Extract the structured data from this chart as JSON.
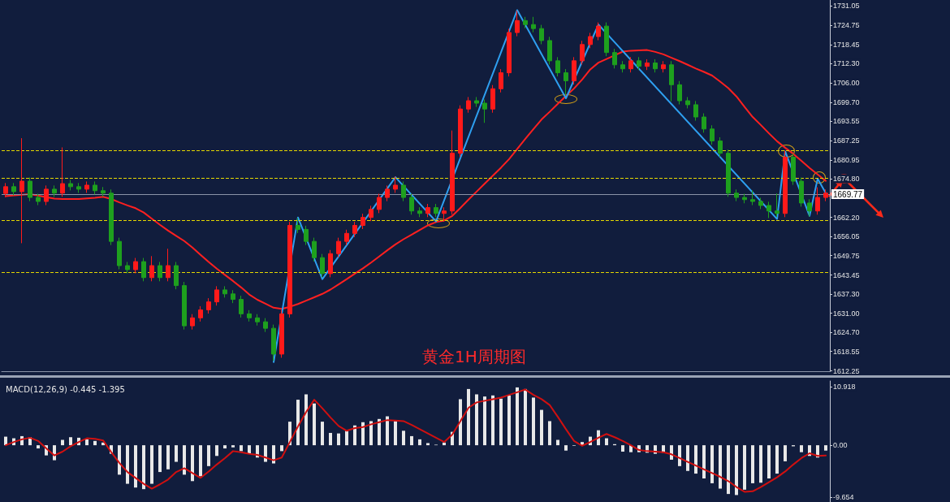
{
  "chart_data": [
    {
      "type": "candlestick",
      "title": "黄金1H周期图",
      "categories": [
        null,
        null,
        null,
        null,
        null,
        null,
        null,
        null,
        null,
        null,
        null,
        null,
        null,
        null,
        null,
        null,
        null,
        null,
        null,
        null,
        null,
        null,
        null,
        null,
        null,
        null,
        null,
        null,
        null,
        null,
        null,
        null,
        null,
        null,
        null,
        null,
        null,
        null,
        null,
        null,
        null,
        null,
        null,
        null,
        null,
        null,
        null,
        null,
        null,
        null,
        null,
        null,
        null,
        null,
        null,
        null,
        null,
        null,
        null,
        null,
        null,
        null,
        null,
        null,
        null,
        null,
        null,
        null,
        null,
        null,
        null,
        null,
        null,
        null,
        null,
        null,
        null,
        null,
        null,
        null,
        null,
        null,
        null,
        null,
        null,
        null,
        null,
        null,
        null,
        null,
        null,
        null,
        null,
        null,
        null,
        null,
        null,
        null,
        null,
        null,
        null,
        null
      ],
      "ohlc": [
        [
          1670.0,
          1673.4,
          1668.8,
          1672.2
        ],
        [
          1672.2,
          1673.4,
          1669.4,
          1670.6
        ],
        [
          1670.6,
          1688.0,
          1653.8,
          1674.0
        ],
        [
          1674.0,
          1675.2,
          1667.5,
          1668.7
        ],
        [
          1668.7,
          1669.9,
          1666.2,
          1667.4
        ],
        [
          1667.4,
          1672.6,
          1666.2,
          1671.4
        ],
        [
          1671.4,
          1672.6,
          1668.9,
          1670.1
        ],
        [
          1670.1,
          1685.0,
          1668.9,
          1673.2
        ],
        [
          1673.2,
          1674.4,
          1671.0,
          1672.2
        ],
        [
          1672.2,
          1673.4,
          1670.2,
          1671.4
        ],
        [
          1671.4,
          1673.9,
          1670.2,
          1672.7
        ],
        [
          1672.7,
          1673.9,
          1669.7,
          1670.9
        ],
        [
          1670.9,
          1672.1,
          1668.9,
          1670.1
        ],
        [
          1670.1,
          1671.3,
          1653.2,
          1654.4
        ],
        [
          1654.4,
          1655.6,
          1645.3,
          1646.5
        ],
        [
          1646.5,
          1647.7,
          1644.0,
          1645.2
        ],
        [
          1645.2,
          1649.0,
          1644.0,
          1647.8
        ],
        [
          1647.8,
          1649.0,
          1641.4,
          1642.6
        ],
        [
          1642.6,
          1649.6,
          1641.4,
          1646.5
        ],
        [
          1646.5,
          1647.7,
          1641.4,
          1642.6
        ],
        [
          1642.6,
          1652.0,
          1641.4,
          1646.5
        ],
        [
          1646.5,
          1647.7,
          1638.8,
          1640.0
        ],
        [
          1640.0,
          1641.2,
          1625.7,
          1626.9
        ],
        [
          1626.9,
          1630.7,
          1625.7,
          1629.5
        ],
        [
          1629.5,
          1633.3,
          1628.3,
          1632.1
        ],
        [
          1632.1,
          1635.9,
          1630.9,
          1634.7
        ],
        [
          1634.7,
          1639.8,
          1633.5,
          1638.6
        ],
        [
          1638.6,
          1639.8,
          1636.1,
          1637.3
        ],
        [
          1637.3,
          1638.5,
          1634.3,
          1635.5
        ],
        [
          1635.5,
          1636.7,
          1629.6,
          1630.8
        ],
        [
          1630.8,
          1632.0,
          1628.3,
          1629.5
        ],
        [
          1629.5,
          1630.7,
          1627.0,
          1628.2
        ],
        [
          1628.2,
          1629.4,
          1624.9,
          1626.1
        ],
        [
          1626.1,
          1627.3,
          1615.5,
          1617.7
        ],
        [
          1617.7,
          1632.0,
          1616.5,
          1630.8
        ],
        [
          1630.8,
          1660.8,
          1629.6,
          1659.6
        ],
        [
          1659.6,
          1662.0,
          1657.1,
          1658.3
        ],
        [
          1658.3,
          1659.5,
          1653.2,
          1654.4
        ],
        [
          1654.4,
          1655.6,
          1647.9,
          1649.1
        ],
        [
          1649.1,
          1650.3,
          1642.7,
          1643.9
        ],
        [
          1643.9,
          1651.6,
          1642.7,
          1650.4
        ],
        [
          1650.4,
          1655.6,
          1649.2,
          1654.4
        ],
        [
          1654.4,
          1658.2,
          1653.2,
          1657.0
        ],
        [
          1657.0,
          1660.8,
          1655.8,
          1659.6
        ],
        [
          1659.6,
          1663.4,
          1658.4,
          1662.2
        ],
        [
          1662.2,
          1666.0,
          1661.0,
          1664.8
        ],
        [
          1664.8,
          1669.9,
          1663.6,
          1668.7
        ],
        [
          1668.7,
          1672.6,
          1667.5,
          1671.4
        ],
        [
          1671.4,
          1675.5,
          1670.2,
          1672.7
        ],
        [
          1672.7,
          1673.9,
          1667.5,
          1668.7
        ],
        [
          1668.7,
          1669.9,
          1663.1,
          1664.3
        ],
        [
          1664.3,
          1665.5,
          1662.3,
          1663.5
        ],
        [
          1663.5,
          1666.6,
          1662.3,
          1665.4
        ],
        [
          1665.4,
          1666.6,
          1662.3,
          1663.5
        ],
        [
          1663.5,
          1665.5,
          1660.8,
          1664.3
        ],
        [
          1664.3,
          1690.5,
          1663.1,
          1683.1
        ],
        [
          1683.1,
          1698.7,
          1681.9,
          1697.5
        ],
        [
          1697.5,
          1701.4,
          1696.3,
          1700.2
        ],
        [
          1700.2,
          1701.4,
          1698.2,
          1699.4
        ],
        [
          1699.4,
          1700.6,
          1693.0,
          1697.5
        ],
        [
          1697.5,
          1705.3,
          1696.3,
          1704.1
        ],
        [
          1704.1,
          1710.5,
          1702.9,
          1709.3
        ],
        [
          1709.3,
          1723.6,
          1708.1,
          1722.4
        ],
        [
          1722.4,
          1729.5,
          1721.2,
          1726.3
        ],
        [
          1726.3,
          1727.5,
          1723.8,
          1725.0
        ],
        [
          1725.0,
          1727.5,
          1722.5,
          1723.7
        ],
        [
          1723.7,
          1724.9,
          1718.6,
          1719.8
        ],
        [
          1719.8,
          1721.0,
          1712.0,
          1713.2
        ],
        [
          1713.2,
          1714.4,
          1708.1,
          1709.3
        ],
        [
          1709.3,
          1710.5,
          1702.0,
          1706.7
        ],
        [
          1706.7,
          1714.4,
          1705.5,
          1713.2
        ],
        [
          1713.2,
          1719.7,
          1712.0,
          1718.5
        ],
        [
          1718.5,
          1722.3,
          1717.3,
          1721.1
        ],
        [
          1721.1,
          1725.7,
          1719.9,
          1724.5
        ],
        [
          1724.5,
          1725.7,
          1714.7,
          1715.9
        ],
        [
          1715.9,
          1717.1,
          1710.7,
          1711.9
        ],
        [
          1711.9,
          1713.1,
          1709.4,
          1710.6
        ],
        [
          1710.6,
          1714.4,
          1709.4,
          1713.2
        ],
        [
          1713.2,
          1714.4,
          1710.2,
          1711.4
        ],
        [
          1711.4,
          1713.7,
          1710.2,
          1712.5
        ],
        [
          1712.5,
          1713.7,
          1709.4,
          1710.6
        ],
        [
          1710.6,
          1713.1,
          1709.4,
          1711.9
        ],
        [
          1711.9,
          1713.1,
          1700.0,
          1705.4
        ],
        [
          1705.4,
          1706.6,
          1699.0,
          1700.2
        ],
        [
          1700.2,
          1701.4,
          1697.7,
          1698.9
        ],
        [
          1698.9,
          1700.1,
          1693.7,
          1694.9
        ],
        [
          1694.9,
          1696.1,
          1689.8,
          1691.0
        ],
        [
          1691.0,
          1692.2,
          1685.9,
          1687.1
        ],
        [
          1687.1,
          1688.3,
          1681.9,
          1683.1
        ],
        [
          1683.1,
          1684.3,
          1668.9,
          1670.1
        ],
        [
          1670.1,
          1671.3,
          1667.5,
          1668.7
        ],
        [
          1668.7,
          1669.9,
          1666.8,
          1668.0
        ],
        [
          1668.0,
          1671.0,
          1666.2,
          1667.4
        ],
        [
          1667.4,
          1668.6,
          1664.9,
          1666.1
        ],
        [
          1666.1,
          1667.3,
          1662.0,
          1664.3
        ],
        [
          1664.3,
          1670.0,
          1662.3,
          1663.5
        ],
        [
          1663.5,
          1684.0,
          1662.3,
          1681.8
        ],
        [
          1681.8,
          1683.0,
          1672.8,
          1674.0
        ],
        [
          1674.0,
          1675.2,
          1665.7,
          1666.9
        ],
        [
          1666.9,
          1668.1,
          1662.5,
          1664.3
        ],
        [
          1664.3,
          1672.0,
          1663.1,
          1668.7
        ],
        [
          1668.7,
          1671.3,
          1667.5,
          1670.1
        ]
      ],
      "series": [
        {
          "type": "line",
          "color": "#ff2020",
          "values": [
            1669.1,
            1669.4,
            1669.6,
            1669.8,
            1669.3,
            1668.8,
            1668.3,
            1668.2,
            1668.2,
            1668.2,
            1668.4,
            1668.6,
            1668.9,
            1668.2,
            1667.1,
            1666.1,
            1665.2,
            1663.8,
            1661.8,
            1659.8,
            1657.9,
            1656.2,
            1654.5,
            1652.4,
            1650.0,
            1647.7,
            1645.5,
            1643.5,
            1641.5,
            1639.4,
            1637.1,
            1635.4,
            1634.1,
            1632.8,
            1632.4,
            1633.1,
            1634.0,
            1635.1,
            1636.2,
            1637.3,
            1638.7,
            1640.4,
            1642.1,
            1643.9,
            1645.6,
            1647.5,
            1649.5,
            1651.5,
            1653.4,
            1655.1,
            1656.6,
            1658.1,
            1659.6,
            1660.7,
            1661.2,
            1662.7,
            1665.3,
            1668.0,
            1670.6,
            1673.2,
            1675.8,
            1678.4,
            1681.2,
            1684.5,
            1687.8,
            1691.0,
            1694.1,
            1696.6,
            1699.2,
            1701.7,
            1704.2,
            1707.1,
            1710.4,
            1712.6,
            1713.8,
            1715.0,
            1716.2,
            1716.5,
            1716.6,
            1716.7,
            1716.1,
            1715.3,
            1714.2,
            1713.1,
            1711.9,
            1710.7,
            1709.6,
            1708.4,
            1706.4,
            1704.3,
            1701.6,
            1698.2,
            1694.9,
            1692.3,
            1689.6,
            1687.0,
            1684.9,
            1682.9,
            1680.6,
            1678.3,
            1676.2,
            1674.1
          ]
        },
        {
          "type": "line",
          "color": "#2e9ff0",
          "values": [
            null,
            null,
            null,
            null,
            null,
            null,
            null,
            null,
            null,
            null,
            null,
            null,
            null,
            null,
            null,
            null,
            null,
            null,
            null,
            null,
            null,
            null,
            null,
            null,
            null,
            null,
            null,
            null,
            null,
            null,
            null,
            null,
            null,
            1615.1,
            null,
            null,
            1662.2,
            null,
            null,
            1642.1,
            null,
            null,
            null,
            null,
            null,
            null,
            null,
            null,
            1675.3,
            null,
            null,
            null,
            null,
            1660.9,
            null,
            null,
            null,
            null,
            null,
            null,
            null,
            null,
            null,
            1729.7,
            null,
            null,
            null,
            null,
            null,
            1701.0,
            null,
            null,
            null,
            1725.0,
            null,
            null,
            null,
            null,
            null,
            null,
            null,
            null,
            null,
            null,
            null,
            null,
            null,
            null,
            null,
            null,
            null,
            null,
            null,
            null,
            null,
            1661.7,
            1683.7,
            null,
            null,
            1662.7,
            1674.8,
            1670.1
          ]
        }
      ],
      "ylim": [
        1612,
        1733
      ],
      "yticks": [
        {
          "value": 1731.05,
          "label": "1731.05"
        },
        {
          "value": 1724.75,
          "label": "1724.75"
        },
        {
          "value": 1718.45,
          "label": "1718.45"
        },
        {
          "value": 1712.3,
          "label": "1712.30"
        },
        {
          "value": 1706.0,
          "label": "1706.00"
        },
        {
          "value": 1699.7,
          "label": "1699.70"
        },
        {
          "value": 1693.55,
          "label": "1693.55"
        },
        {
          "value": 1687.25,
          "label": "1687.25"
        },
        {
          "value": 1680.95,
          "label": "1680.95"
        },
        {
          "value": 1674.8,
          "label": "1674.80"
        },
        {
          "value": 1662.2,
          "label": "1662.20"
        },
        {
          "value": 1656.05,
          "label": "1656.05"
        },
        {
          "value": 1649.75,
          "label": "1649.75"
        },
        {
          "value": 1643.45,
          "label": "1643.45"
        },
        {
          "value": 1637.3,
          "label": "1637.30"
        },
        {
          "value": 1631.0,
          "label": "1631.00"
        },
        {
          "value": 1624.7,
          "label": "1624.70"
        },
        {
          "value": 1618.55,
          "label": "1618.55"
        },
        {
          "value": 1612.25,
          "label": "1612.25"
        }
      ],
      "ref_lines": [
        {
          "axis": "y",
          "value": 1669.77,
          "label": "1669.77",
          "color": "#8a93a8",
          "line_style": "solid"
        },
        {
          "axis": "y",
          "value": 1684.0,
          "color": "#e6d800",
          "line_style": "dashed"
        },
        {
          "axis": "y",
          "value": 1675.0,
          "color": "#e6d800",
          "line_style": "dashed"
        },
        {
          "axis": "y",
          "value": 1661.2,
          "color": "#e6d800",
          "line_style": "dashed"
        },
        {
          "axis": "y",
          "value": 1644.4,
          "color": "#e6d800",
          "line_style": "dashed"
        }
      ],
      "marker": "none",
      "grid": false,
      "tick_labels": "y"
    },
    {
      "type": "bar",
      "title": "MACD(12,26,9) -0.445 -1.395",
      "categories": [
        null,
        null,
        null,
        null,
        null,
        null,
        null,
        null,
        null,
        null,
        null,
        null,
        null,
        null,
        null,
        null,
        null,
        null,
        null,
        null,
        null,
        null,
        null,
        null,
        null,
        null,
        null,
        null,
        null,
        null,
        null,
        null,
        null,
        null,
        null,
        null,
        null,
        null,
        null,
        null,
        null,
        null,
        null,
        null,
        null,
        null,
        null,
        null,
        null,
        null,
        null,
        null,
        null,
        null,
        null,
        null,
        null,
        null,
        null,
        null,
        null,
        null,
        null,
        null,
        null,
        null,
        null,
        null,
        null,
        null,
        null,
        null,
        null,
        null,
        null,
        null,
        null,
        null,
        null,
        null,
        null,
        null,
        null,
        null,
        null,
        null,
        null,
        null,
        null,
        null,
        null,
        null,
        null,
        null,
        null,
        null,
        null,
        null,
        null,
        null,
        null,
        null
      ],
      "series": [
        {
          "type": "bar",
          "color": "#e8e8e8",
          "values": [
            1.6,
            1.3,
            1.7,
            1.5,
            -0.6,
            -1.9,
            -2.8,
            1.0,
            1.5,
            1.4,
            1.1,
            0.8,
            0.5,
            -1.6,
            -5.5,
            -7.2,
            -7.9,
            -8.2,
            -7.2,
            -5.0,
            -4.5,
            -3.1,
            -5.5,
            -6.7,
            -5.8,
            -3.9,
            -2.0,
            -0.6,
            -0.4,
            -1.1,
            -1.6,
            -2.3,
            -3.1,
            -3.4,
            -1.1,
            4.4,
            8.5,
            9.5,
            7.8,
            4.4,
            2.3,
            2.2,
            2.7,
            3.7,
            4.3,
            4.5,
            4.9,
            5.4,
            4.5,
            2.7,
            1.7,
            1.1,
            0.4,
            0.1,
            0.5,
            2.5,
            8.6,
            10.5,
            9.5,
            9.1,
            9.3,
            8.7,
            9.3,
            10.8,
            10.5,
            8.9,
            6.6,
            4.5,
            1.0,
            -1.0,
            -0.1,
            0.6,
            1.6,
            2.8,
            1.3,
            0.2,
            -1.2,
            -1.3,
            -1.3,
            -1.4,
            -1.6,
            -1.4,
            -2.7,
            -3.9,
            -4.8,
            -5.3,
            -6.2,
            -7.1,
            -8.1,
            -9.1,
            -9.3,
            -8.3,
            -7.1,
            -7.0,
            -6.2,
            -5.3,
            -3.0,
            -0.2,
            -1.3,
            -2.0,
            -2.3,
            -1.0
          ]
        },
        {
          "type": "line",
          "color": "#d01010",
          "values": [
            0.0,
            0.6,
            1.1,
            1.4,
            0.8,
            -0.6,
            -1.9,
            -1.2,
            -0.2,
            0.6,
            1.3,
            1.2,
            0.9,
            -1.3,
            -3.3,
            -5.0,
            -6.1,
            -7.2,
            -8.1,
            -7.3,
            -6.4,
            -5.0,
            -4.3,
            -5.2,
            -6.1,
            -4.9,
            -3.6,
            -2.4,
            -1.1,
            -1.3,
            -1.6,
            -1.8,
            -2.3,
            -2.8,
            -2.3,
            0.6,
            3.5,
            6.2,
            8.5,
            6.9,
            5.2,
            3.6,
            2.7,
            3.2,
            3.4,
            3.9,
            4.3,
            4.7,
            4.6,
            4.5,
            3.8,
            3.0,
            2.2,
            1.4,
            0.6,
            2.0,
            4.5,
            7.0,
            8.0,
            8.3,
            8.6,
            8.9,
            9.4,
            9.9,
            10.4,
            9.4,
            8.6,
            7.5,
            5.3,
            3.0,
            0.8,
            -0.1,
            0.6,
            1.4,
            2.1,
            1.5,
            0.8,
            0.0,
            -0.9,
            -1.1,
            -1.2,
            -1.3,
            -1.7,
            -2.4,
            -3.1,
            -3.8,
            -4.5,
            -5.2,
            -5.9,
            -6.7,
            -7.8,
            -8.7,
            -8.6,
            -7.8,
            -6.9,
            -6.0,
            -4.9,
            -3.6,
            -2.4,
            -1.5,
            -2.0,
            -1.9
          ]
        }
      ],
      "ylim": [
        -10.6,
        12
      ],
      "yticks": [
        {
          "value": 10.918,
          "label": "10.918"
        },
        {
          "value": 0,
          "label": "0.00"
        },
        {
          "value": -9.654,
          "label": "-9.654"
        }
      ],
      "marker": "none",
      "grid": false,
      "tick_labels": "y"
    }
  ]
}
